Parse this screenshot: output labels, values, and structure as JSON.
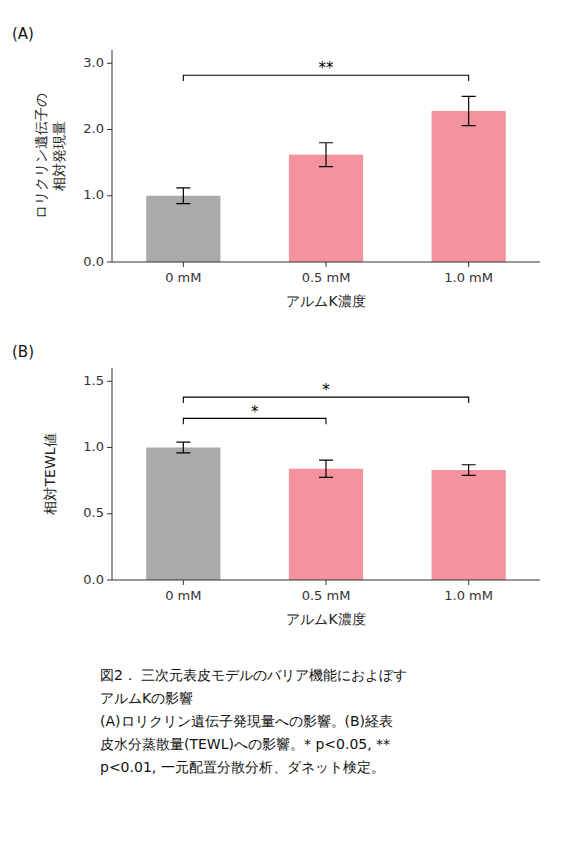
{
  "chart_data": [
    {
      "type": "bar",
      "title": "(A)",
      "categories": [
        "0 mM",
        "0.5 mM",
        "1.0 mM"
      ],
      "values": [
        1.0,
        1.62,
        2.28
      ],
      "errors": [
        0.12,
        0.18,
        0.22
      ],
      "colors": [
        "#aaaaaa",
        "#f4929e",
        "#f4929e"
      ],
      "x_label": "アルムK濃度",
      "y_label": "ロリクリン遺伝子の\n相対発現量",
      "ylim": [
        0,
        3.2
      ],
      "yticks": [
        {
          "value": 0.0,
          "label": "0.0"
        },
        {
          "value": 1.0,
          "label": "1.0"
        },
        {
          "value": 2.0,
          "label": "2.0"
        },
        {
          "value": 3.0,
          "label": "3.0"
        }
      ],
      "grid": false,
      "annotations": [
        {
          "text": "**",
          "from": "0 mM",
          "to": "1.0 mM",
          "y": 2.82
        }
      ]
    },
    {
      "type": "bar",
      "title": "(B)",
      "categories": [
        "0 mM",
        "0.5 mM",
        "1.0 mM"
      ],
      "values": [
        1.0,
        0.84,
        0.83
      ],
      "errors": [
        0.04,
        0.065,
        0.04
      ],
      "colors": [
        "#aaaaaa",
        "#f4929e",
        "#f4929e"
      ],
      "x_label": "アルムK濃度",
      "y_label": "相対TEWL値",
      "ylim": [
        0,
        1.6
      ],
      "yticks": [
        {
          "value": 0.0,
          "label": "0.0"
        },
        0.5,
        {
          "value": 1.0,
          "label": "1.0"
        },
        {
          "value": 1.5,
          "label": "1.5"
        }
      ],
      "grid": false,
      "annotations": [
        {
          "text": "*",
          "from": "0 mM",
          "to": "0.5 mM",
          "y": 1.22
        },
        {
          "text": "*",
          "from": "0 mM",
          "to": "1.0 mM",
          "y": 1.38
        }
      ]
    }
  ],
  "caption": [
    "図2． 三次元表皮モデルのバリア機能におよぼす",
    "アルムKの影響",
    "(A)ロリクリン遺伝子発現量への影響。(B)経表",
    "皮水分蒸散量(TEWL)への影響。* p<0.05, **",
    "p<0.01, 一元配置分散分析、ダネット検定。"
  ]
}
